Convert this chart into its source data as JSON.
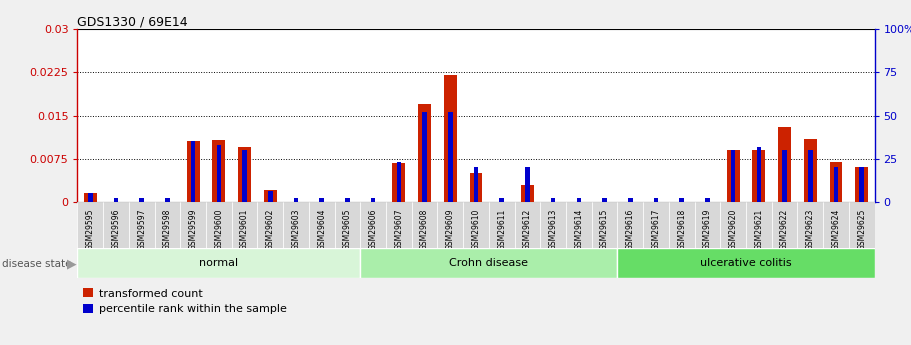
{
  "title": "GDS1330 / 69E14",
  "samples": [
    "GSM29595",
    "GSM29596",
    "GSM29597",
    "GSM29598",
    "GSM29599",
    "GSM29600",
    "GSM29601",
    "GSM29602",
    "GSM29603",
    "GSM29604",
    "GSM29605",
    "GSM29606",
    "GSM29607",
    "GSM29608",
    "GSM29609",
    "GSM29610",
    "GSM29611",
    "GSM29612",
    "GSM29613",
    "GSM29614",
    "GSM29615",
    "GSM29616",
    "GSM29617",
    "GSM29618",
    "GSM29619",
    "GSM29620",
    "GSM29621",
    "GSM29622",
    "GSM29623",
    "GSM29624",
    "GSM29625"
  ],
  "transformed_count": [
    0.0016,
    0.0,
    0.0,
    0.0,
    0.0105,
    0.0108,
    0.0095,
    0.002,
    0.0,
    0.0,
    0.0,
    0.0,
    0.0068,
    0.017,
    0.022,
    0.005,
    0.0,
    0.003,
    0.0,
    0.0,
    0.0,
    0.0,
    0.0,
    0.0,
    0.0,
    0.009,
    0.009,
    0.013,
    0.011,
    0.007,
    0.006
  ],
  "percentile_rank": [
    5,
    2,
    2,
    2,
    35,
    33,
    30,
    6,
    2,
    2,
    2,
    2,
    23,
    52,
    52,
    20,
    2,
    20,
    2,
    2,
    2,
    2,
    2,
    2,
    2,
    30,
    32,
    30,
    30,
    20,
    20
  ],
  "groups": [
    {
      "label": "normal",
      "start": 0,
      "end": 10,
      "color": "#d8f5d8"
    },
    {
      "label": "Crohn disease",
      "start": 11,
      "end": 20,
      "color": "#aaeeaa"
    },
    {
      "label": "ulcerative colitis",
      "start": 21,
      "end": 30,
      "color": "#66dd66"
    }
  ],
  "left_ylim": [
    0,
    0.03
  ],
  "right_ylim": [
    0,
    100
  ],
  "left_yticks": [
    0,
    0.0075,
    0.015,
    0.0225,
    0.03
  ],
  "right_yticks": [
    0,
    25,
    50,
    75,
    100
  ],
  "left_ytick_labels": [
    "0",
    "0.0075",
    "0.015",
    "0.0225",
    "0.03"
  ],
  "right_ytick_labels": [
    "0",
    "25",
    "50",
    "75",
    "100%"
  ],
  "left_color": "#cc0000",
  "right_color": "#0000cc",
  "bar_color_red": "#cc2200",
  "bar_color_blue": "#0000cc",
  "plot_bg": "#ffffff",
  "legend_label_red": "transformed count",
  "legend_label_blue": "percentile rank within the sample",
  "disease_state_label": "disease state",
  "red_bar_width": 0.5,
  "blue_bar_width": 0.18
}
